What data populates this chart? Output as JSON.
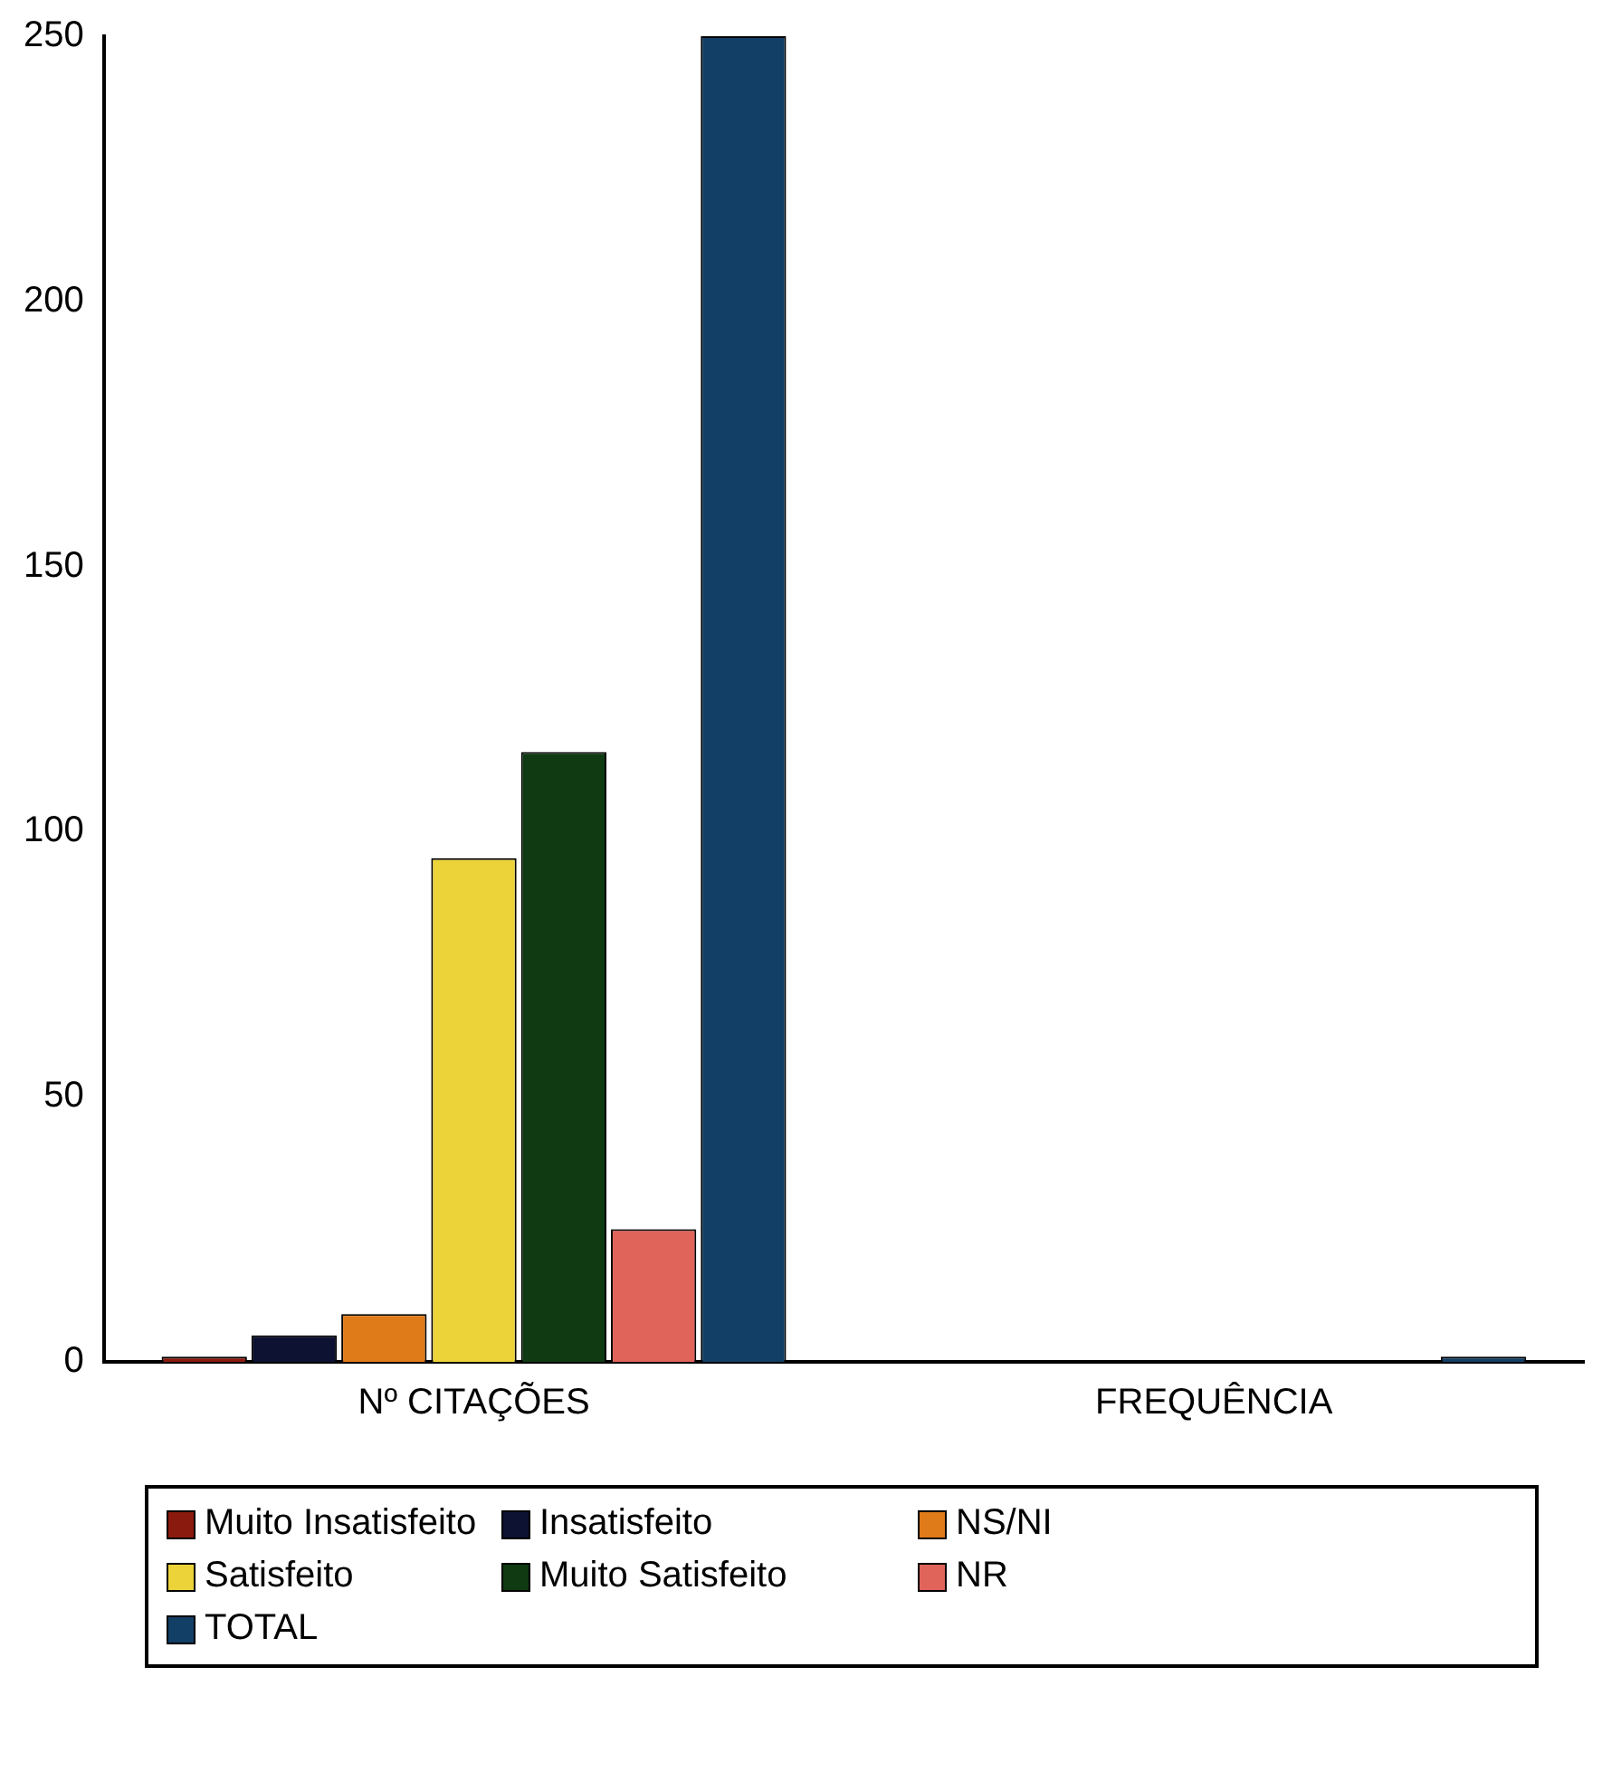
{
  "chart_data": {
    "type": "bar",
    "categories": [
      "Nº CITAÇÕES",
      "FREQUÊNCIA"
    ],
    "series": [
      {
        "name": "Muito Insatisfeito",
        "color": "#8b1a0e",
        "values": [
          1,
          0
        ]
      },
      {
        "name": "Insatisfeito",
        "color": "#0d1233",
        "values": [
          5,
          0
        ]
      },
      {
        "name": "NS/NI",
        "color": "#e07b1a",
        "values": [
          9,
          0
        ]
      },
      {
        "name": "Satisfeito",
        "color": "#ecd33a",
        "values": [
          95,
          0
        ]
      },
      {
        "name": "Muito Satisfeito",
        "color": "#0f3a12",
        "values": [
          115,
          0
        ]
      },
      {
        "name": "NR",
        "color": "#e0645a",
        "values": [
          25,
          0
        ]
      },
      {
        "name": "TOTAL",
        "color": "#123f66",
        "values": [
          250,
          1
        ]
      }
    ],
    "ylim": [
      0,
      250
    ],
    "yticks": [
      0,
      50,
      100,
      150,
      200,
      250
    ],
    "grid": false,
    "legend": "bottom"
  }
}
